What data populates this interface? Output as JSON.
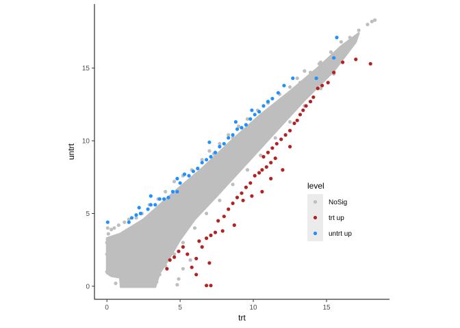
{
  "chart_data": {
    "type": "scatter",
    "xlabel": "trt",
    "ylabel": "untrt",
    "xlim": [
      -0.85,
      19.3
    ],
    "ylim": [
      -0.9,
      19.4
    ],
    "x_ticks": [
      0,
      5,
      10,
      15
    ],
    "y_ticks": [
      0,
      5,
      10,
      15
    ],
    "grid": false,
    "legend": {
      "title": "level",
      "placement": "right-inside",
      "entries": [
        {
          "label": "NoSig",
          "color": "#bebebe"
        },
        {
          "label": "trt up",
          "color": "#b22222"
        },
        {
          "label": "untrt up",
          "color": "#1e90ff"
        }
      ]
    },
    "series": [
      {
        "name": "NoSig",
        "color": "#bebebe",
        "points": [
          [
            0.05,
            4.0
          ],
          [
            0.1,
            3.6
          ],
          [
            0.3,
            3.9
          ],
          [
            0.5,
            4.0
          ],
          [
            0.8,
            4.2
          ],
          [
            1.2,
            4.4
          ],
          [
            1.5,
            4.6
          ],
          [
            2.0,
            4.7
          ],
          [
            2.4,
            5.0
          ],
          [
            2.9,
            5.6
          ],
          [
            3.5,
            6.0
          ],
          [
            4.0,
            6.5
          ],
          [
            4.6,
            7.2
          ],
          [
            5.2,
            7.6
          ],
          [
            5.8,
            8.0
          ],
          [
            6.5,
            8.7
          ],
          [
            7.0,
            9.3
          ],
          [
            7.7,
            9.8
          ],
          [
            8.3,
            10.4
          ],
          [
            9.0,
            11.0
          ],
          [
            9.6,
            11.5
          ],
          [
            10.3,
            12.1
          ],
          [
            11.0,
            12.6
          ],
          [
            11.8,
            13.2
          ],
          [
            12.5,
            13.7
          ],
          [
            13.0,
            14.3
          ],
          [
            13.5,
            14.8
          ],
          [
            14.5,
            15.3
          ],
          [
            15.2,
            15.6
          ],
          [
            16.0,
            16.4
          ],
          [
            16.6,
            17.1
          ],
          [
            17.2,
            17.6
          ],
          [
            17.8,
            18.0
          ],
          [
            18.1,
            18.2
          ],
          [
            18.3,
            18.3
          ],
          [
            15.5,
            14.6
          ],
          [
            14.6,
            13.6
          ],
          [
            13.5,
            12.4
          ],
          [
            12.5,
            11.3
          ],
          [
            11.5,
            10.2
          ],
          [
            10.5,
            9.0
          ],
          [
            9.6,
            8.0
          ],
          [
            8.6,
            7.0
          ],
          [
            7.7,
            5.9
          ],
          [
            6.8,
            5.0
          ],
          [
            6.0,
            4.0
          ],
          [
            5.2,
            3.0
          ],
          [
            4.6,
            2.2
          ],
          [
            4.0,
            1.4
          ],
          [
            3.6,
            0.8
          ],
          [
            3.4,
            0.3
          ],
          [
            4.8,
            0.1
          ],
          [
            4.9,
            0.5
          ],
          [
            5.2,
            1.2
          ],
          [
            5.7,
            1.8
          ],
          [
            3.0,
            0.1
          ],
          [
            2.6,
            0.4
          ],
          [
            0.6,
            0.2
          ],
          [
            1.1,
            0.9
          ],
          [
            1.6,
            1.8
          ],
          [
            2.2,
            2.6
          ],
          [
            2.8,
            3.2
          ],
          [
            3.4,
            3.9
          ],
          [
            4.1,
            4.6
          ],
          [
            4.8,
            5.4
          ],
          [
            5.5,
            6.1
          ],
          [
            6.2,
            6.8
          ],
          [
            6.9,
            7.6
          ],
          [
            7.6,
            8.3
          ],
          [
            8.3,
            9.1
          ],
          [
            9.0,
            9.8
          ],
          [
            9.7,
            10.5
          ],
          [
            10.4,
            11.2
          ],
          [
            11.1,
            11.9
          ],
          [
            11.8,
            12.6
          ],
          [
            12.5,
            13.3
          ],
          [
            13.2,
            14.0
          ],
          [
            13.9,
            14.7
          ],
          [
            14.6,
            15.4
          ],
          [
            15.3,
            16.1
          ],
          [
            16.0,
            16.8
          ],
          [
            0.0,
            1.0
          ],
          [
            0.0,
            2.2
          ],
          [
            0.0,
            3.0
          ],
          [
            1.0,
            3.0
          ],
          [
            2.0,
            3.5
          ],
          [
            7.3,
            9.1
          ],
          [
            8.6,
            10.2
          ],
          [
            9.4,
            10.6
          ]
        ]
      },
      {
        "name": "trt up",
        "color": "#b22222",
        "points": [
          [
            4.1,
            1.2
          ],
          [
            4.3,
            1.8
          ],
          [
            4.6,
            2.0
          ],
          [
            4.9,
            2.4
          ],
          [
            5.2,
            2.7
          ],
          [
            5.5,
            2.2
          ],
          [
            5.8,
            1.3
          ],
          [
            6.1,
            0.8
          ],
          [
            6.3,
            3.1
          ],
          [
            6.5,
            2.7
          ],
          [
            6.8,
            3.3
          ],
          [
            7.1,
            3.5
          ],
          [
            7.4,
            3.7
          ],
          [
            7.0,
            1.6
          ],
          [
            7.1,
            0.05
          ],
          [
            6.8,
            0.05
          ],
          [
            6.1,
            1.9
          ],
          [
            7.6,
            4.5
          ],
          [
            8.0,
            4.8
          ],
          [
            8.3,
            5.3
          ],
          [
            8.6,
            5.7
          ],
          [
            8.9,
            6.1
          ],
          [
            9.2,
            6.4
          ],
          [
            9.5,
            6.8
          ],
          [
            9.8,
            7.1
          ],
          [
            10.1,
            7.6
          ],
          [
            10.4,
            7.8
          ],
          [
            10.6,
            8.0
          ],
          [
            10.9,
            8.2
          ],
          [
            11.2,
            8.5
          ],
          [
            11.5,
            8.8
          ],
          [
            10.7,
            8.9
          ],
          [
            11.0,
            9.2
          ],
          [
            11.3,
            9.5
          ],
          [
            11.6,
            9.8
          ],
          [
            11.9,
            10.1
          ],
          [
            12.2,
            10.4
          ],
          [
            12.5,
            10.7
          ],
          [
            12.8,
            11.2
          ],
          [
            13.0,
            11.4
          ],
          [
            13.2,
            11.8
          ],
          [
            13.4,
            12.1
          ],
          [
            13.6,
            12.4
          ],
          [
            13.9,
            12.7
          ],
          [
            14.1,
            13.0
          ],
          [
            14.4,
            13.6
          ],
          [
            14.7,
            13.8
          ],
          [
            15.1,
            14.0
          ],
          [
            15.5,
            14.7
          ],
          [
            16.1,
            15.4
          ],
          [
            17.0,
            15.6
          ],
          [
            18.0,
            15.3
          ],
          [
            12.0,
            8.0
          ],
          [
            12.5,
            9.6
          ],
          [
            11.2,
            7.4
          ],
          [
            10.6,
            6.5
          ],
          [
            9.3,
            5.9
          ],
          [
            8.7,
            4.2
          ],
          [
            7.9,
            3.8
          ],
          [
            9.9,
            6.2
          ]
        ]
      },
      {
        "name": "untrt up",
        "color": "#1e90ff",
        "points": [
          [
            0.05,
            4.4
          ],
          [
            1.5,
            4.4
          ],
          [
            1.7,
            4.7
          ],
          [
            2.0,
            4.9
          ],
          [
            2.3,
            5.0
          ],
          [
            2.2,
            5.4
          ],
          [
            2.8,
            5.3
          ],
          [
            3.0,
            5.6
          ],
          [
            3.3,
            5.6
          ],
          [
            3.6,
            6.0
          ],
          [
            3.9,
            6.0
          ],
          [
            4.2,
            6.1
          ],
          [
            4.5,
            6.5
          ],
          [
            4.8,
            6.5
          ],
          [
            5.0,
            7.1
          ],
          [
            5.3,
            7.7
          ],
          [
            5.6,
            7.6
          ],
          [
            5.9,
            7.9
          ],
          [
            6.2,
            8.1
          ],
          [
            6.5,
            8.5
          ],
          [
            6.8,
            8.7
          ],
          [
            7.1,
            8.9
          ],
          [
            7.4,
            9.2
          ],
          [
            7.7,
            9.6
          ],
          [
            8.0,
            9.8
          ],
          [
            8.3,
            10.2
          ],
          [
            8.6,
            10.4
          ],
          [
            8.9,
            10.8
          ],
          [
            9.2,
            10.9
          ],
          [
            9.5,
            11.1
          ],
          [
            9.8,
            11.5
          ],
          [
            10.1,
            11.8
          ],
          [
            10.4,
            12.0
          ],
          [
            10.7,
            12.4
          ],
          [
            11.0,
            12.7
          ],
          [
            11.3,
            12.9
          ],
          [
            11.7,
            13.3
          ],
          [
            12.1,
            13.8
          ],
          [
            12.7,
            14.3
          ],
          [
            14.3,
            14.3
          ],
          [
            15.5,
            15.7
          ],
          [
            15.7,
            17.1
          ],
          [
            3.0,
            6.2
          ],
          [
            4.8,
            7.4
          ],
          [
            7.0,
            9.9
          ],
          [
            8.8,
            11.3
          ],
          [
            9.9,
            12.1
          ]
        ]
      }
    ]
  }
}
